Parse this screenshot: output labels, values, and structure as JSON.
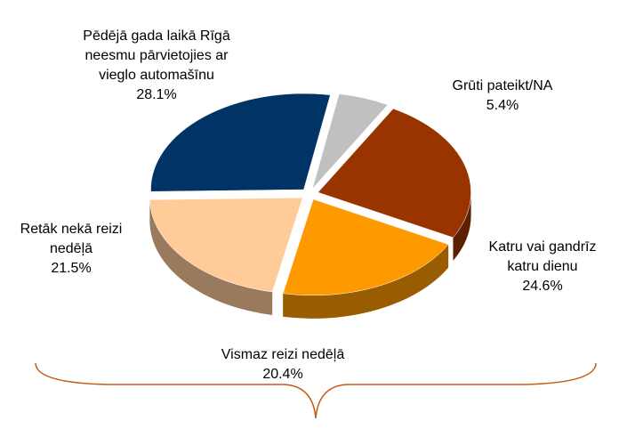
{
  "chart_data": {
    "type": "pie",
    "categories": [
      "Grūti pateikt/NA",
      "Katru vai gandrīz katru dienu",
      "Vismaz reizi nedēļā",
      "Retāk nekā reizi nedēļā",
      "Pēdējā gada laikā Rīgā neesmu pārvietojies ar vieglo automašīnu"
    ],
    "values": [
      5.4,
      24.6,
      20.4,
      21.5,
      28.1
    ],
    "value_labels": [
      "5.4%",
      "24.6%",
      "20.4%",
      "21.5%",
      "28.1%"
    ],
    "colors": [
      "#c0c0c0",
      "#993300",
      "#ff9900",
      "#ffcc99",
      "#003366"
    ]
  }
}
